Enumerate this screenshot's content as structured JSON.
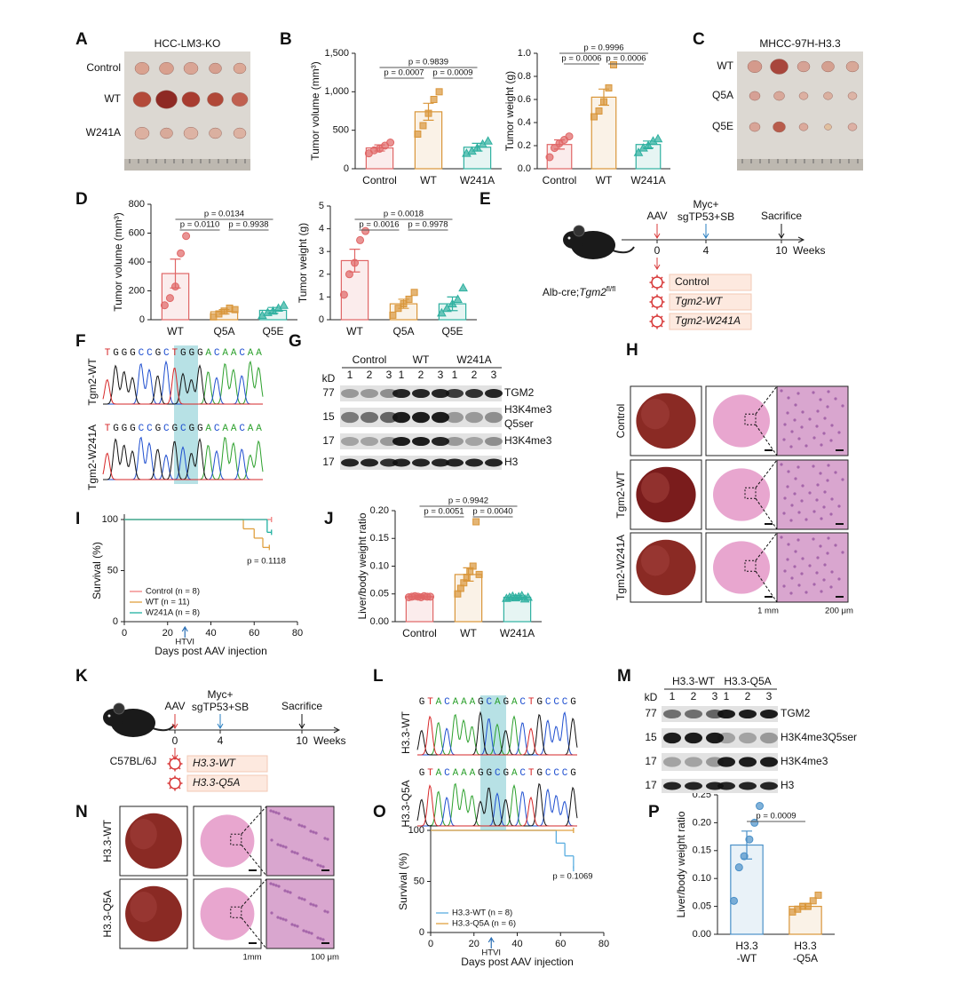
{
  "chart_data": [
    {
      "type": "bar",
      "y_label": "Tumor volume (mm³)",
      "categories": [
        "Control",
        "WT",
        "W241A"
      ],
      "colors": [
        "#e06666",
        "#d9963a",
        "#2fb0a0"
      ],
      "markers": [
        "circle",
        "square",
        "triangle"
      ],
      "values": [
        270,
        740,
        280
      ],
      "errors": [
        40,
        110,
        50
      ],
      "points": [
        [
          200,
          240,
          260,
          300,
          340
        ],
        [
          450,
          560,
          720,
          900,
          1000
        ],
        [
          200,
          230,
          270,
          320,
          360
        ]
      ],
      "ylim": [
        0,
        1500
      ],
      "yticks": [
        0,
        500,
        {
          "value": 1000,
          "label": "1,000"
        },
        {
          "value": 1500,
          "label": "1,500"
        }
      ],
      "annotations": [
        {
          "text": "p = 0.9839",
          "between": [
            "Control",
            "W241A"
          ]
        },
        {
          "text": "p = 0.0007",
          "between": [
            "Control",
            "WT"
          ]
        },
        {
          "text": "p = 0.0009",
          "between": [
            "WT",
            "W241A"
          ]
        }
      ]
    },
    {
      "type": "bar",
      "y_label": "Tumor weight (g)",
      "categories": [
        "Control",
        "WT",
        "W241A"
      ],
      "colors": [
        "#e06666",
        "#d9963a",
        "#2fb0a0"
      ],
      "markers": [
        "circle",
        "square",
        "triangle"
      ],
      "values": [
        0.21,
        0.62,
        0.21
      ],
      "errors": [
        0.04,
        0.07,
        0.03
      ],
      "points": [
        [
          0.1,
          0.18,
          0.22,
          0.25,
          0.28
        ],
        [
          0.45,
          0.5,
          0.58,
          0.7,
          0.9
        ],
        [
          0.14,
          0.18,
          0.2,
          0.24,
          0.26
        ]
      ],
      "ylim": [
        0,
        1
      ],
      "yticks": [
        {
          "value": 0,
          "label": "0.0"
        },
        0.2,
        0.4,
        0.6,
        0.8,
        {
          "value": 1,
          "label": "1.0"
        }
      ],
      "annotations": [
        {
          "text": "p = 0.9996",
          "between": [
            "Control",
            "W241A"
          ]
        },
        {
          "text": "p = 0.0006",
          "between": [
            "Control",
            "WT"
          ]
        },
        {
          "text": "p = 0.0006",
          "between": [
            "WT",
            "W241A"
          ]
        }
      ]
    },
    {
      "type": "bar",
      "y_label": "Tumor volume (mm³)",
      "categories": [
        "WT",
        "Q5A",
        "Q5E"
      ],
      "colors": [
        "#e06666",
        "#d9963a",
        "#2fb0a0"
      ],
      "markers": [
        "circle",
        "square",
        "triangle"
      ],
      "values": [
        320,
        55,
        65
      ],
      "errors": [
        100,
        15,
        20
      ],
      "points": [
        [
          100,
          150,
          230,
          460,
          580
        ],
        [
          20,
          40,
          60,
          80,
          70
        ],
        [
          30,
          50,
          60,
          80,
          100
        ]
      ],
      "ylim": [
        0,
        800
      ],
      "yticks": [
        0,
        200,
        400,
        600,
        800
      ],
      "annotations": [
        {
          "text": "p = 0.0134",
          "between": [
            "WT",
            "Q5E"
          ]
        },
        {
          "text": "p = 0.0110",
          "between": [
            "WT",
            "Q5A"
          ]
        },
        {
          "text": "p = 0.9938",
          "between": [
            "Q5A",
            "Q5E"
          ]
        }
      ]
    },
    {
      "type": "bar",
      "y_label": "Tumor weight (g)",
      "categories": [
        "WT",
        "Q5A",
        "Q5E"
      ],
      "colors": [
        "#e06666",
        "#d9963a",
        "#2fb0a0"
      ],
      "markers": [
        "circle",
        "square",
        "triangle"
      ],
      "values": [
        2.6,
        0.7,
        0.7
      ],
      "errors": [
        0.5,
        0.2,
        0.3
      ],
      "points": [
        [
          1.1,
          2,
          2.5,
          3.5,
          3.9
        ],
        [
          0.2,
          0.5,
          0.7,
          0.9,
          1.2
        ],
        [
          0.3,
          0.5,
          0.7,
          0.9,
          1.4
        ]
      ],
      "ylim": [
        0,
        5
      ],
      "yticks": [
        0,
        1,
        2,
        3,
        4,
        5
      ],
      "annotations": [
        {
          "text": "p = 0.0018",
          "between": [
            "WT",
            "Q5E"
          ]
        },
        {
          "text": "p = 0.0016",
          "between": [
            "WT",
            "Q5A"
          ]
        },
        {
          "text": "p = 0.9978",
          "between": [
            "Q5A",
            "Q5E"
          ]
        }
      ]
    },
    {
      "type": "bar",
      "y_label": "Liver/body weight ratio",
      "categories": [
        "Control",
        "WT",
        "W241A"
      ],
      "colors": [
        "#e06666",
        "#d9963a",
        "#2fb0a0"
      ],
      "markers": [
        "circle",
        "square",
        "triangle"
      ],
      "values": [
        0.045,
        0.085,
        0.044
      ],
      "errors": [
        0.002,
        0.012,
        0.003
      ],
      "points": [
        [
          0.044,
          0.045,
          0.046,
          0.045,
          0.044,
          0.046,
          0.045,
          0.045
        ],
        [
          0.05,
          0.06,
          0.07,
          0.08,
          0.09,
          0.1,
          0.18,
          0.085
        ],
        [
          0.042,
          0.044,
          0.046,
          0.043,
          0.045,
          0.047,
          0.041,
          0.044
        ]
      ],
      "ylim": [
        0,
        0.2
      ],
      "yticks": [
        {
          "value": 0,
          "label": "0.00"
        },
        0.05,
        {
          "value": 0.1,
          "label": "0.10"
        },
        0.15,
        {
          "value": 0.2,
          "label": "0.20"
        }
      ],
      "annotations": [
        {
          "text": "p = 0.9942",
          "between": [
            "Control",
            "W241A"
          ]
        },
        {
          "text": "p = 0.0051",
          "between": [
            "Control",
            "WT"
          ]
        },
        {
          "text": "p = 0.0040",
          "between": [
            "WT",
            "W241A"
          ]
        }
      ]
    },
    {
      "type": "bar",
      "y_label": "Liver/body weight ratio",
      "categories": [
        "H3.3-WT",
        "H3.3-Q5A"
      ],
      "colors": [
        "#4a90c8",
        "#d9963a"
      ],
      "markers": [
        "circle",
        "square"
      ],
      "values": [
        0.16,
        0.05
      ],
      "errors": [
        0.025,
        0.005
      ],
      "points": [
        [
          0.06,
          0.12,
          0.14,
          0.17,
          0.2,
          0.23
        ],
        [
          0.04,
          0.045,
          0.05,
          0.05,
          0.06,
          0.07
        ]
      ],
      "ylim": [
        0,
        0.25
      ],
      "yticks": [
        {
          "value": 0,
          "label": "0.00"
        },
        0.05,
        {
          "value": 0.1,
          "label": "0.10"
        },
        0.15,
        {
          "value": 0.2,
          "label": "0.20"
        },
        0.25
      ],
      "annotations": [
        {
          "text": "p = 0.0009",
          "between": [
            "H3.3-WT",
            "H3.3-Q5A"
          ]
        }
      ]
    },
    {
      "type": "line",
      "step": true,
      "x_label": "Days post AAV injection",
      "y_label": "Survival (%)",
      "xlim": [
        0,
        80
      ],
      "xticks": [
        0,
        20,
        40,
        60,
        80
      ],
      "ylim": [
        0,
        100
      ],
      "yticks": [
        0,
        50,
        100
      ],
      "legend": "lower left",
      "series": [
        {
          "name": "Control (n = 8)",
          "color": "#f08080",
          "x": [
            0,
            68
          ],
          "values": [
            100,
            100
          ]
        },
        {
          "name": "WT (n = 11)",
          "color": "#e0a040",
          "x": [
            0,
            55,
            60,
            64,
            67
          ],
          "values": [
            100,
            90.9,
            81.8,
            72.7,
            72.7
          ]
        },
        {
          "name": "W241A (n = 8)",
          "color": "#20b0a0",
          "x": [
            0,
            66,
            68
          ],
          "values": [
            100,
            87.5,
            87.5
          ]
        }
      ],
      "annotations": [
        {
          "text": "p = 0.1118"
        },
        {
          "text": "HTVI",
          "x": 28
        }
      ]
    },
    {
      "type": "line",
      "step": true,
      "x_label": "Days post AAV injection",
      "y_label": "Survival (%)",
      "xlim": [
        0,
        80
      ],
      "xticks": [
        0,
        20,
        40,
        60,
        80
      ],
      "ylim": [
        0,
        100
      ],
      "yticks": [
        0,
        50,
        100
      ],
      "legend": "lower left",
      "series": [
        {
          "name": "H3.3-WT (n = 8)",
          "color": "#5aaee0",
          "x": [
            0,
            58,
            62,
            66
          ],
          "values": [
            100,
            87.5,
            75,
            62.5
          ]
        },
        {
          "name": "H3.3-Q5A (n = 6)",
          "color": "#e0a040",
          "x": [
            0,
            66
          ],
          "values": [
            100,
            100
          ]
        }
      ],
      "annotations": [
        {
          "text": "p = 0.1069"
        },
        {
          "text": "HTVI",
          "x": 28
        }
      ]
    }
  ],
  "figure": {
    "panels": [
      "A",
      "B",
      "C",
      "D",
      "E",
      "F",
      "G",
      "H",
      "I",
      "J",
      "K",
      "L",
      "M",
      "N",
      "O",
      "P"
    ],
    "a": {
      "title": "HCC-LM3-KO",
      "rows": [
        "Control",
        "WT",
        "W241A"
      ]
    },
    "c": {
      "title": "MHCC-97H-H3.3",
      "rows": [
        "WT",
        "Q5A",
        "Q5E"
      ]
    },
    "e": {
      "mouse": [
        "Alb-cre;",
        "Tgm2",
        "fl/fl"
      ],
      "steps": [
        "AAV",
        "Myc+",
        "sgTP53+SB",
        "Sacrifice"
      ],
      "times": [
        0,
        4,
        10
      ],
      "unit": "Weeks",
      "vectors": [
        "Control",
        "Tgm2-WT",
        "Tgm2-W241A"
      ]
    },
    "f": {
      "sequences": [
        "TGGGCCGCTGGGACAACAA",
        "TGGGCCGCGCGGACAACAA"
      ],
      "rows": [
        "Tgm2-WT",
        "Tgm2-W241A"
      ]
    },
    "g": {
      "unit": "kD",
      "groups": [
        "Control",
        "WT",
        "W241A"
      ],
      "lanes": [
        "1",
        "2",
        "3"
      ],
      "bands": [
        {
          "size": 77,
          "label": "TGM2"
        },
        {
          "size": 15,
          "label": "H3K4me3Q5ser"
        },
        {
          "size": 17,
          "label": "H3K4me3"
        },
        {
          "size": 17,
          "label": "H3"
        }
      ]
    },
    "h": {
      "rows": [
        "Control",
        "Tgm2-WT",
        "Tgm2-W241A"
      ],
      "scales": [
        "1 mm",
        "200 μm"
      ]
    },
    "k": {
      "mouse": [
        "C57BL/6J"
      ],
      "steps": [
        "AAV",
        "Myc+",
        "sgTP53+SB",
        "Sacrifice"
      ],
      "times": [
        0,
        4,
        10
      ],
      "unit": "Weeks",
      "vectors": [
        "H3.3-WT",
        "H3.3-Q5A"
      ]
    },
    "l": {
      "sequences": [
        "GTACAAAGCAGACTGCCCG",
        "GTACAAAGGCGACTGCCCG"
      ],
      "rows": [
        "H3.3-WT",
        "H3.3-Q5A"
      ]
    },
    "m": {
      "unit": "kD",
      "groups": [
        "H3.3-WT",
        "H3.3-Q5A"
      ],
      "lanes": [
        "1",
        "2",
        "3"
      ],
      "bands": [
        {
          "size": 77,
          "label": "TGM2"
        },
        {
          "size": 15,
          "label": "H3K4me3Q5ser"
        },
        {
          "size": 17,
          "label": "H3K4me3"
        },
        {
          "size": 17,
          "label": "H3"
        }
      ]
    },
    "n": {
      "rows": [
        "H3.3-WT",
        "H3.3-Q5A"
      ],
      "scales": [
        "1mm",
        "100 μm"
      ]
    }
  }
}
